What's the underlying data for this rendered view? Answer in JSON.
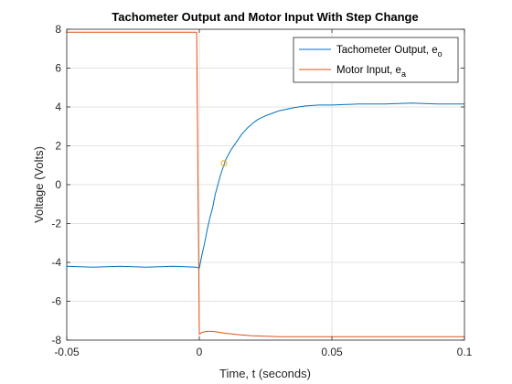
{
  "chart_data": {
    "type": "line",
    "title": "Tachometer Output and Motor Input With Step Change",
    "xlabel": "Time, t (seconds)",
    "ylabel": "Voltage (Volts)",
    "xlim": [
      -0.05,
      0.1
    ],
    "ylim": [
      -8,
      8
    ],
    "grid": true,
    "legend_position": "top-right",
    "x_ticks": [
      -0.05,
      0,
      0.05,
      0.1
    ],
    "x_tick_labels": [
      "-0.05",
      "0",
      "0.05",
      "0.1"
    ],
    "y_ticks": [
      -8,
      -6,
      -4,
      -2,
      0,
      2,
      4,
      6,
      8
    ],
    "y_tick_labels": [
      "-8",
      "-6",
      "-4",
      "-2",
      "0",
      "2",
      "4",
      "6",
      "8"
    ],
    "series": [
      {
        "name": "Tachometer Output, e",
        "name_subscript": "o",
        "color": "#0072BD",
        "x": [
          -0.05,
          -0.04,
          -0.03,
          -0.02,
          -0.01,
          -0.001,
          0,
          0.001,
          0.002,
          0.003,
          0.004,
          0.005,
          0.006,
          0.007,
          0.008,
          0.009,
          0.01,
          0.012,
          0.014,
          0.016,
          0.018,
          0.02,
          0.022,
          0.025,
          0.028,
          0.03,
          0.035,
          0.04,
          0.045,
          0.05,
          0.06,
          0.07,
          0.08,
          0.09,
          0.1
        ],
        "y": [
          -4.2,
          -4.25,
          -4.2,
          -4.25,
          -4.2,
          -4.25,
          -4.3,
          -3.6,
          -3.0,
          -2.3,
          -1.7,
          -1.2,
          -0.5,
          0.0,
          0.5,
          0.9,
          1.3,
          1.8,
          2.2,
          2.6,
          2.9,
          3.15,
          3.35,
          3.55,
          3.7,
          3.8,
          3.95,
          4.05,
          4.1,
          4.1,
          4.15,
          4.15,
          4.2,
          4.15,
          4.15
        ]
      },
      {
        "name": "Motor Input, e",
        "name_subscript": "a",
        "color": "#D95319",
        "x": [
          -0.05,
          -0.02,
          -0.001,
          0,
          0.001,
          0.003,
          0.005,
          0.01,
          0.015,
          0.02,
          0.03,
          0.05,
          0.07,
          0.1
        ],
        "y": [
          7.85,
          7.85,
          7.85,
          -7.7,
          -7.6,
          -7.55,
          -7.55,
          -7.65,
          -7.72,
          -7.78,
          -7.82,
          -7.82,
          -7.82,
          -7.82
        ]
      }
    ],
    "marker": {
      "x": 0.0093,
      "y": 1.1,
      "color": "#EDB120"
    }
  }
}
